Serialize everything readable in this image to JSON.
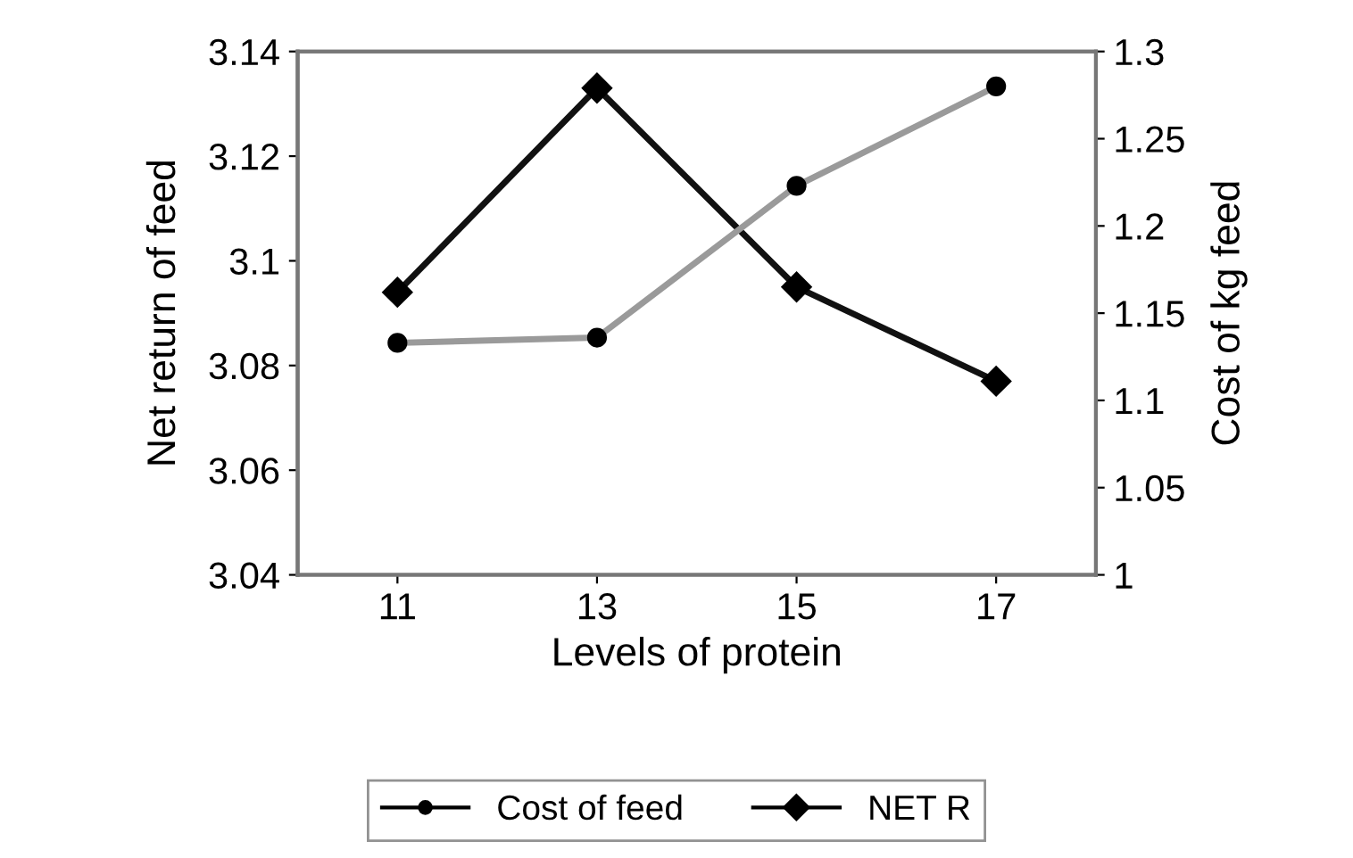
{
  "chart_data": {
    "type": "line",
    "xlabel": "Levels of protein",
    "ylabel": "Net return of feed",
    "y2label": "Cost of kg feed",
    "categories": [
      "11",
      "13",
      "15",
      "17"
    ],
    "series": [
      {
        "name": "Cost of feed",
        "color": "#9a9a9a",
        "marker": "circle",
        "axis": "y2",
        "values": [
          1.133,
          1.136,
          1.223,
          1.28
        ]
      },
      {
        "name": "NET R",
        "color": "#111111",
        "marker": "diamond",
        "values": [
          3.094,
          3.133,
          3.095,
          3.077
        ]
      }
    ],
    "ylim": [
      3.04,
      3.14
    ],
    "yticks": [
      3.04,
      3.06,
      3.08,
      3.1,
      3.12,
      3.14
    ],
    "y2lim": [
      1,
      1.3
    ],
    "y2ticks": [
      1,
      1.05,
      1.1,
      1.15,
      1.2,
      1.25,
      1.3
    ],
    "legend": "bottom",
    "grid": false,
    "line_style": "solid"
  }
}
